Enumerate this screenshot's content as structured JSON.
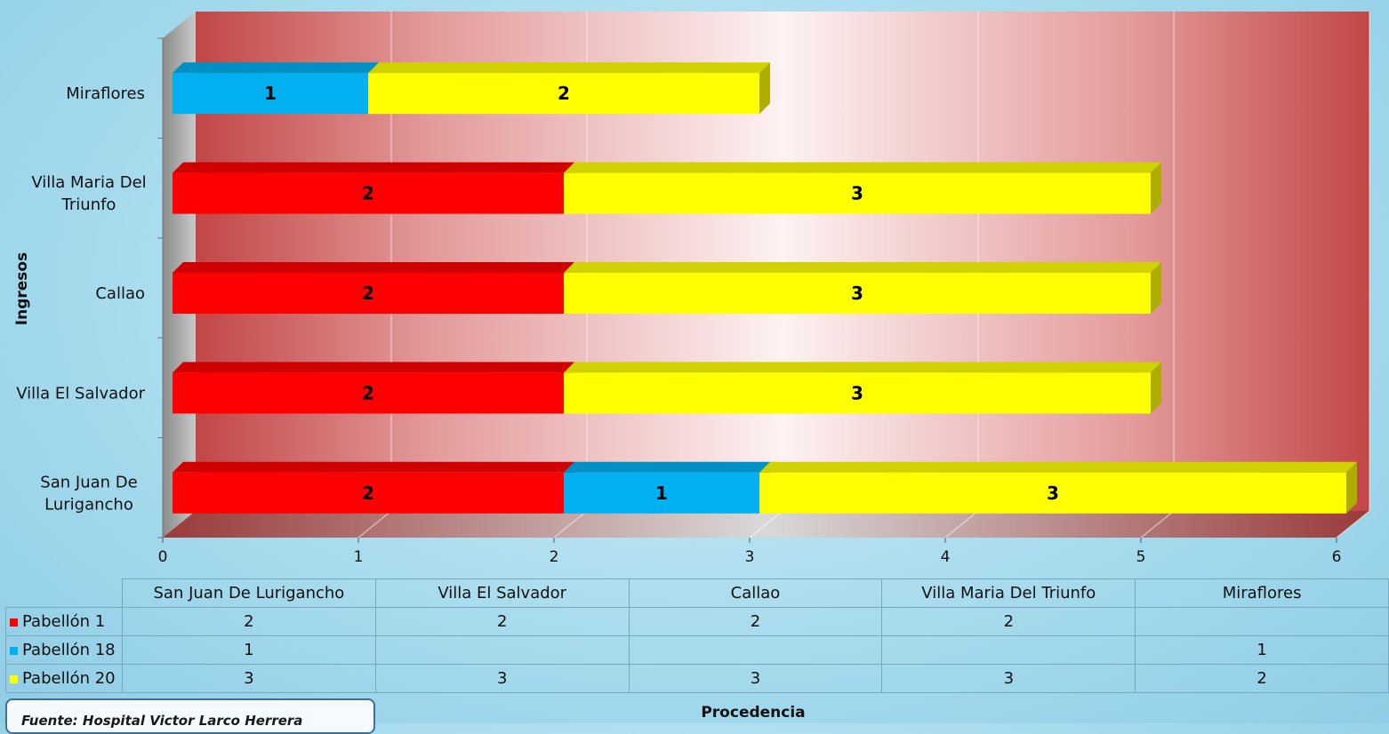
{
  "chart_data": {
    "type": "bar",
    "orientation": "horizontal",
    "stacked": true,
    "three_d": true,
    "ylabel": "Ingresos",
    "xlabel": "Procedencia",
    "categories": [
      "San Juan De Lurigancho",
      "Villa El Salvador",
      "Callao",
      "Villa Maria Del Triunfo",
      "Miraflores"
    ],
    "category_labels": [
      [
        "San Juan De",
        "Lurigancho"
      ],
      [
        "Villa El Salvador"
      ],
      [
        "Callao"
      ],
      [
        "Villa Maria Del",
        "Triunfo"
      ],
      [
        "Miraflores"
      ]
    ],
    "series": [
      {
        "name": "Pabellón 1",
        "color": "#ff0000",
        "values": [
          2,
          2,
          2,
          2,
          null
        ]
      },
      {
        "name": "Pabellón 18",
        "color": "#00b0f0",
        "values": [
          1,
          null,
          null,
          null,
          1
        ]
      },
      {
        "name": "Pabellón 20",
        "color": "#ffff00",
        "values": [
          3,
          3,
          3,
          3,
          2
        ]
      }
    ],
    "xlim": [
      0,
      6
    ],
    "xticks": [
      "0",
      "1",
      "2",
      "3",
      "4",
      "5",
      "6"
    ],
    "grid": true,
    "legend": "data-table-below"
  },
  "source_note": "Fuente: Hospital Victor Larco Herrera"
}
